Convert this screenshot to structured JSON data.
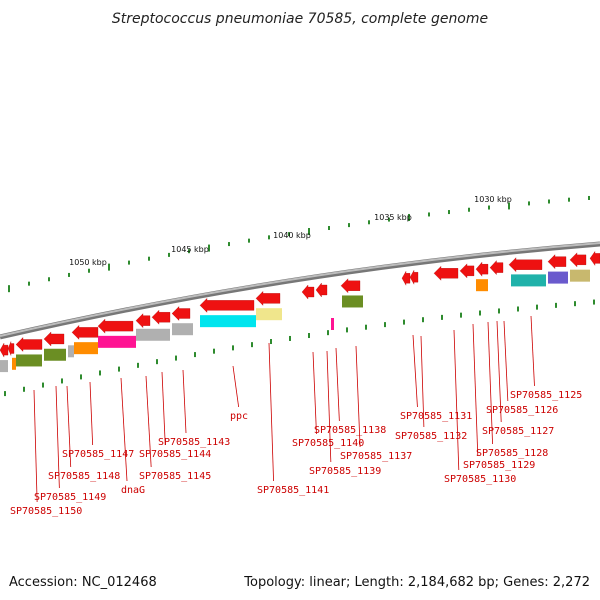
{
  "title": "Streptococcus pneumoniae 70585, complete genome",
  "footer": {
    "accession": "Accession: NC_012468",
    "stats": "Topology: linear; Length: 2,184,682 bp; Genes: 2,272"
  },
  "ruler": {
    "kbp_labels": [
      "1050 kbp",
      "1045 kbp",
      "1040 kbp",
      "1035 kbp",
      "1030 kbp"
    ]
  },
  "colors": {
    "red": "#ee1111",
    "olive": "#6b8e23",
    "orange": "#ff8c00",
    "magenta": "#ff1493",
    "grey": "#b0b0b0",
    "cyan": "#00e5ee",
    "khaki": "#f0e68c",
    "teal": "#20b2aa",
    "slate": "#6a5acd",
    "tan": "#c8b86e",
    "label": "#cc0000",
    "tick": "#2e8b2e",
    "backbone": "#888888"
  },
  "gene_labels": [
    "SP70585_1150",
    "SP70585_1149",
    "SP70585_1148",
    "SP70585_1147",
    "dnaG",
    "SP70585_1145",
    "SP70585_1144",
    "SP70585_1143",
    "ppc",
    "SP70585_1141",
    "SP70585_1140",
    "SP70585_1139",
    "SP70585_1138",
    "SP70585_1137",
    "SP70585_1132",
    "SP70585_1131",
    "SP70585_1130",
    "SP70585_1129",
    "SP70585_1128",
    "SP70585_1127",
    "SP70585_1126",
    "SP70585_1125"
  ]
}
